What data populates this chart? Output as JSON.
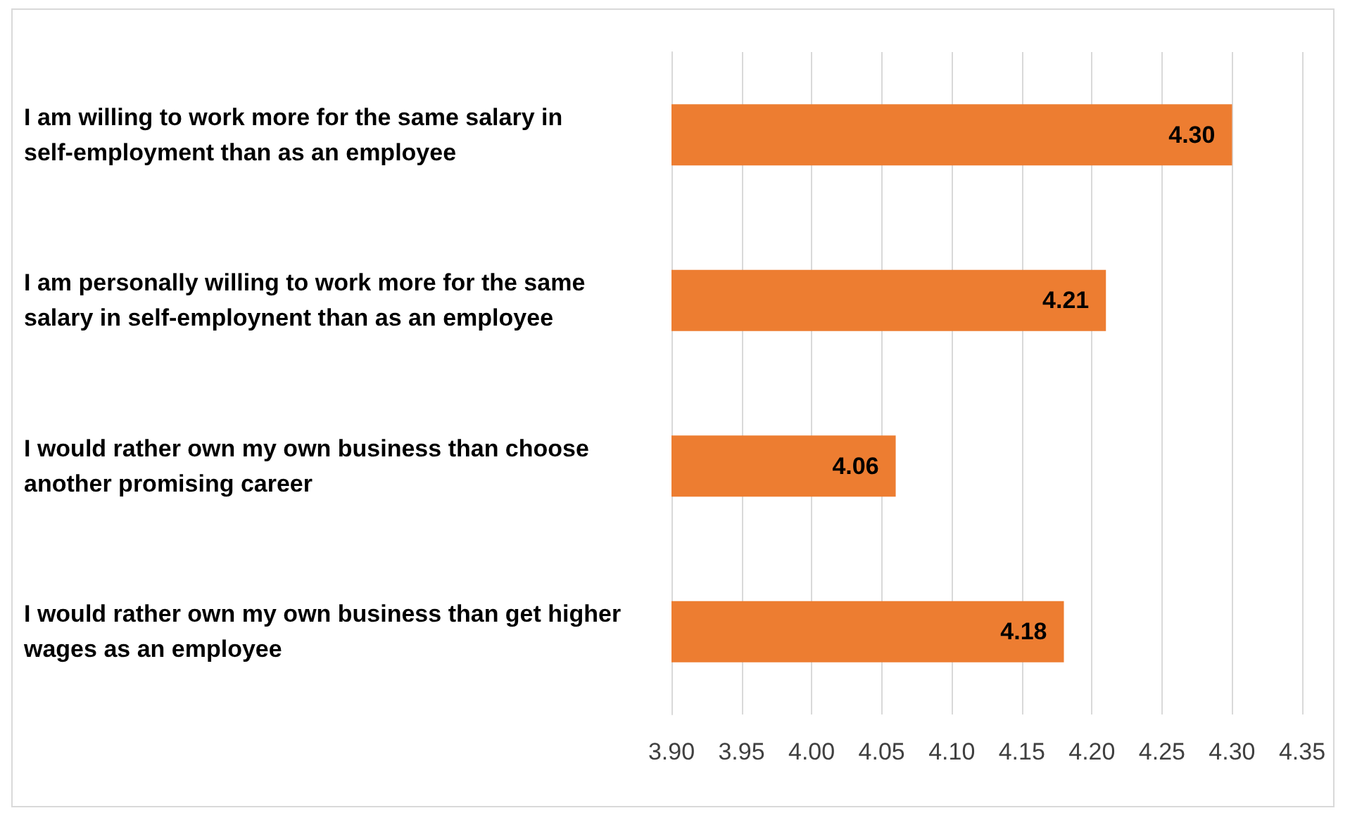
{
  "chart_data": {
    "type": "bar",
    "orientation": "horizontal",
    "categories": [
      "I am willing to work more for the same salary in self-employment than as an employee",
      "I am personally willing to work more for the same salary in self-employnent than as an employee",
      "I would rather own my own business than choose another promising career",
      "I would rather own my own business than get higher wages as an employee"
    ],
    "values": [
      4.3,
      4.21,
      4.06,
      4.18
    ],
    "value_labels": [
      "4.30",
      "4.21",
      "4.06",
      "4.18"
    ],
    "color": "#ed7d31",
    "xlim": [
      3.9,
      4.35
    ],
    "xticks": [
      {
        "value": 3.9,
        "label": "3.90"
      },
      {
        "value": 3.95,
        "label": "3.95"
      },
      {
        "value": 4.0,
        "label": "4.00"
      },
      {
        "value": 4.05,
        "label": "4.05"
      },
      {
        "value": 4.1,
        "label": "4.10"
      },
      {
        "value": 4.15,
        "label": "4.15"
      },
      {
        "value": 4.2,
        "label": "4.20"
      },
      {
        "value": 4.25,
        "label": "4.25"
      },
      {
        "value": 4.3,
        "label": "4.30"
      },
      {
        "value": 4.35,
        "label": "4.35"
      }
    ],
    "grid": "x"
  }
}
